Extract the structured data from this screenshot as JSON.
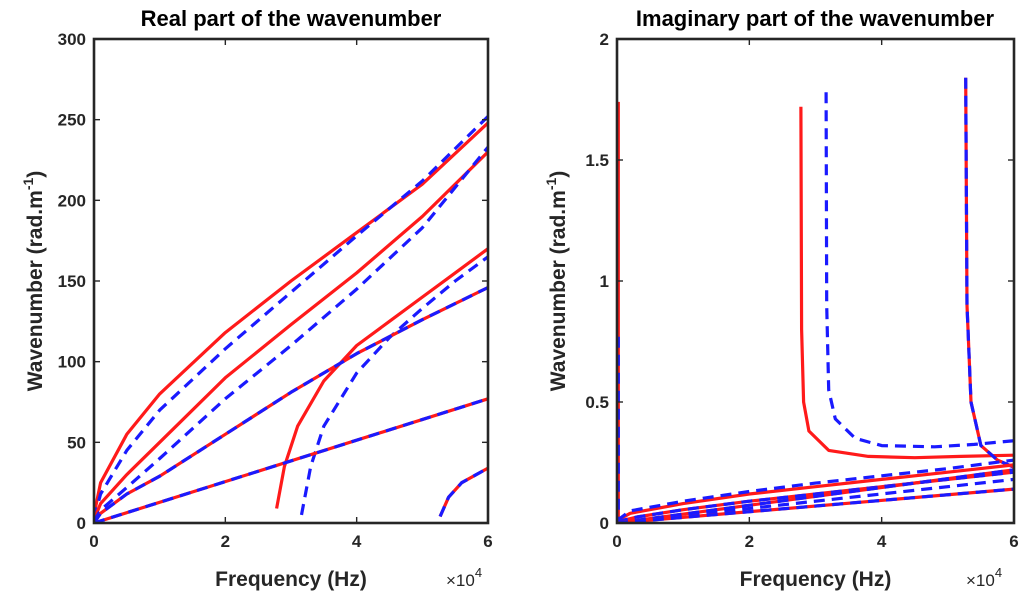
{
  "chart_data": [
    {
      "type": "line",
      "title": "Real part of the wavenumber",
      "xlabel": "Frequency (Hz)",
      "ylabel": "Wavenumber (rad.m",
      "ylabel_superscript": "-1",
      "ylabel_suffix": ")",
      "x_exponent_label": "×10",
      "x_exponent_power": "4",
      "xlim": [
        0,
        6
      ],
      "ylim": [
        0,
        300
      ],
      "xticks": [
        "0",
        "2",
        "4",
        "6"
      ],
      "yticks": [
        "0",
        "50",
        "100",
        "150",
        "200",
        "250",
        "300"
      ],
      "x_scale_factor": 10000,
      "series": [
        {
          "style": "solid",
          "color": "#ff1a1a",
          "points": [
            [
              0,
              5
            ],
            [
              0.1,
              25
            ],
            [
              0.5,
              55
            ],
            [
              1,
              80
            ],
            [
              2,
              118
            ],
            [
              3,
              150
            ],
            [
              4,
              180
            ],
            [
              5,
              210
            ],
            [
              6,
              248
            ]
          ]
        },
        {
          "style": "dashed",
          "color": "#1a1aff",
          "points": [
            [
              0,
              3
            ],
            [
              0.1,
              18
            ],
            [
              0.5,
              45
            ],
            [
              1,
              70
            ],
            [
              2,
              108
            ],
            [
              3,
              143
            ],
            [
              4,
              178
            ],
            [
              5,
              212
            ],
            [
              6,
              252
            ]
          ]
        },
        {
          "style": "solid",
          "color": "#ff1a1a",
          "points": [
            [
              0,
              2
            ],
            [
              0.1,
              12
            ],
            [
              0.5,
              30
            ],
            [
              1,
              50
            ],
            [
              2,
              90
            ],
            [
              3,
              123
            ],
            [
              4,
              155
            ],
            [
              5,
              190
            ],
            [
              6,
              230
            ]
          ]
        },
        {
          "style": "dashed",
          "color": "#1a1aff",
          "points": [
            [
              0,
              1
            ],
            [
              0.1,
              8
            ],
            [
              0.5,
              22
            ],
            [
              1,
              40
            ],
            [
              2,
              77
            ],
            [
              3,
              110
            ],
            [
              4,
              145
            ],
            [
              5,
              183
            ],
            [
              6,
              233
            ]
          ]
        },
        {
          "style": "solid",
          "color": "#ff1a1a",
          "points": [
            [
              2.78,
              9
            ],
            [
              2.9,
              35
            ],
            [
              3.1,
              60
            ],
            [
              3.5,
              88
            ],
            [
              4,
              110
            ],
            [
              4.5,
              125
            ],
            [
              5,
              140
            ],
            [
              5.5,
              155
            ],
            [
              6,
              170
            ]
          ]
        },
        {
          "style": "dashed",
          "color": "#1a1aff",
          "points": [
            [
              3.16,
              5
            ],
            [
              3.3,
              35
            ],
            [
              3.5,
              60
            ],
            [
              4,
              93
            ],
            [
              4.5,
              115
            ],
            [
              5,
              133
            ],
            [
              5.5,
              150
            ],
            [
              6,
              165
            ]
          ]
        },
        {
          "style": "dashed-bicolor",
          "color": "#ff1a1a",
          "color2": "#1a1aff",
          "points": [
            [
              0,
              0
            ],
            [
              0.1,
              6
            ],
            [
              0.5,
              18
            ],
            [
              1,
              29
            ],
            [
              2,
              55
            ],
            [
              3,
              81
            ],
            [
              4,
              105
            ],
            [
              5,
              126
            ],
            [
              6,
              146
            ]
          ]
        },
        {
          "style": "dashed-bicolor",
          "color": "#ff1a1a",
          "color2": "#1a1aff",
          "points": [
            [
              0,
              0
            ],
            [
              6,
              77
            ]
          ]
        },
        {
          "style": "dashed-bicolor",
          "color": "#ff1a1a",
          "color2": "#1a1aff",
          "points": [
            [
              5.27,
              4
            ],
            [
              5.4,
              16
            ],
            [
              5.6,
              25
            ],
            [
              6,
              34
            ]
          ]
        }
      ]
    },
    {
      "type": "line",
      "title": "Imaginary part of the wavenumber",
      "xlabel": "Frequency (Hz)",
      "ylabel": "Wavenumber (rad.m",
      "ylabel_superscript": "-1",
      "ylabel_suffix": ")",
      "x_exponent_label": "×10",
      "x_exponent_power": "4",
      "xlim": [
        0,
        6
      ],
      "ylim": [
        0,
        2
      ],
      "xticks": [
        "0",
        "2",
        "4",
        "6"
      ],
      "yticks": [
        "0",
        "0.5",
        "1",
        "1.5",
        "2"
      ],
      "x_scale_factor": 10000,
      "series": [
        {
          "style": "solid",
          "color": "#ff1a1a",
          "points": [
            [
              0.02,
              1.74
            ],
            [
              0.02,
              0.5
            ],
            [
              0.02,
              0.02
            ]
          ]
        },
        {
          "style": "dashed",
          "color": "#1a1aff",
          "points": [
            [
              0.02,
              0.77
            ],
            [
              0.02,
              0.02
            ]
          ]
        },
        {
          "style": "solid",
          "color": "#ff1a1a",
          "points": [
            [
              2.78,
              1.72
            ],
            [
              2.79,
              0.8
            ],
            [
              2.82,
              0.5
            ],
            [
              2.9,
              0.38
            ],
            [
              3.2,
              0.3
            ],
            [
              3.8,
              0.275
            ],
            [
              4.5,
              0.27
            ],
            [
              5.2,
              0.275
            ],
            [
              6,
              0.28
            ]
          ]
        },
        {
          "style": "dashed",
          "color": "#1a1aff",
          "points": [
            [
              3.16,
              1.78
            ],
            [
              3.17,
              0.9
            ],
            [
              3.2,
              0.55
            ],
            [
              3.3,
              0.43
            ],
            [
              3.6,
              0.35
            ],
            [
              4,
              0.32
            ],
            [
              4.8,
              0.315
            ],
            [
              5.4,
              0.325
            ],
            [
              6,
              0.34
            ]
          ]
        },
        {
          "style": "dashed-bicolor",
          "color": "#ff1a1a",
          "color2": "#1a1aff",
          "points": [
            [
              5.27,
              1.84
            ],
            [
              5.29,
              0.9
            ],
            [
              5.35,
              0.5
            ],
            [
              5.5,
              0.32
            ],
            [
              5.75,
              0.26
            ],
            [
              6,
              0.23
            ]
          ]
        },
        {
          "style": "solid",
          "color": "#ff1a1a",
          "points": [
            [
              0,
              0.01
            ],
            [
              0.2,
              0.04
            ],
            [
              1,
              0.08
            ],
            [
              2,
              0.12
            ],
            [
              3,
              0.15
            ],
            [
              4,
              0.18
            ],
            [
              5,
              0.21
            ],
            [
              6,
              0.24
            ]
          ]
        },
        {
          "style": "dashed",
          "color": "#1a1aff",
          "points": [
            [
              0,
              0.01
            ],
            [
              0.2,
              0.05
            ],
            [
              1,
              0.09
            ],
            [
              2,
              0.13
            ],
            [
              3,
              0.165
            ],
            [
              4,
              0.195
            ],
            [
              5,
              0.225
            ],
            [
              6,
              0.26
            ]
          ]
        },
        {
          "style": "dashed-bicolor",
          "color": "#ff1a1a",
          "color2": "#1a1aff",
          "points": [
            [
              0,
              0.005
            ],
            [
              0.3,
              0.025
            ],
            [
              1,
              0.055
            ],
            [
              2,
              0.09
            ],
            [
              3,
              0.12
            ],
            [
              4,
              0.15
            ],
            [
              5,
              0.18
            ],
            [
              6,
              0.21
            ]
          ]
        },
        {
          "style": "dashed-bicolor",
          "color": "#ff1a1a",
          "color2": "#1a1aff",
          "points": [
            [
              0,
              0
            ],
            [
              6,
              0.22
            ]
          ]
        },
        {
          "style": "dashed",
          "color": "#1a1aff",
          "points": [
            [
              0,
              0
            ],
            [
              6,
              0.18
            ]
          ]
        },
        {
          "style": "dashed-bicolor",
          "color": "#ff1a1a",
          "color2": "#1a1aff",
          "points": [
            [
              0,
              0
            ],
            [
              6,
              0.14
            ]
          ]
        }
      ]
    }
  ]
}
